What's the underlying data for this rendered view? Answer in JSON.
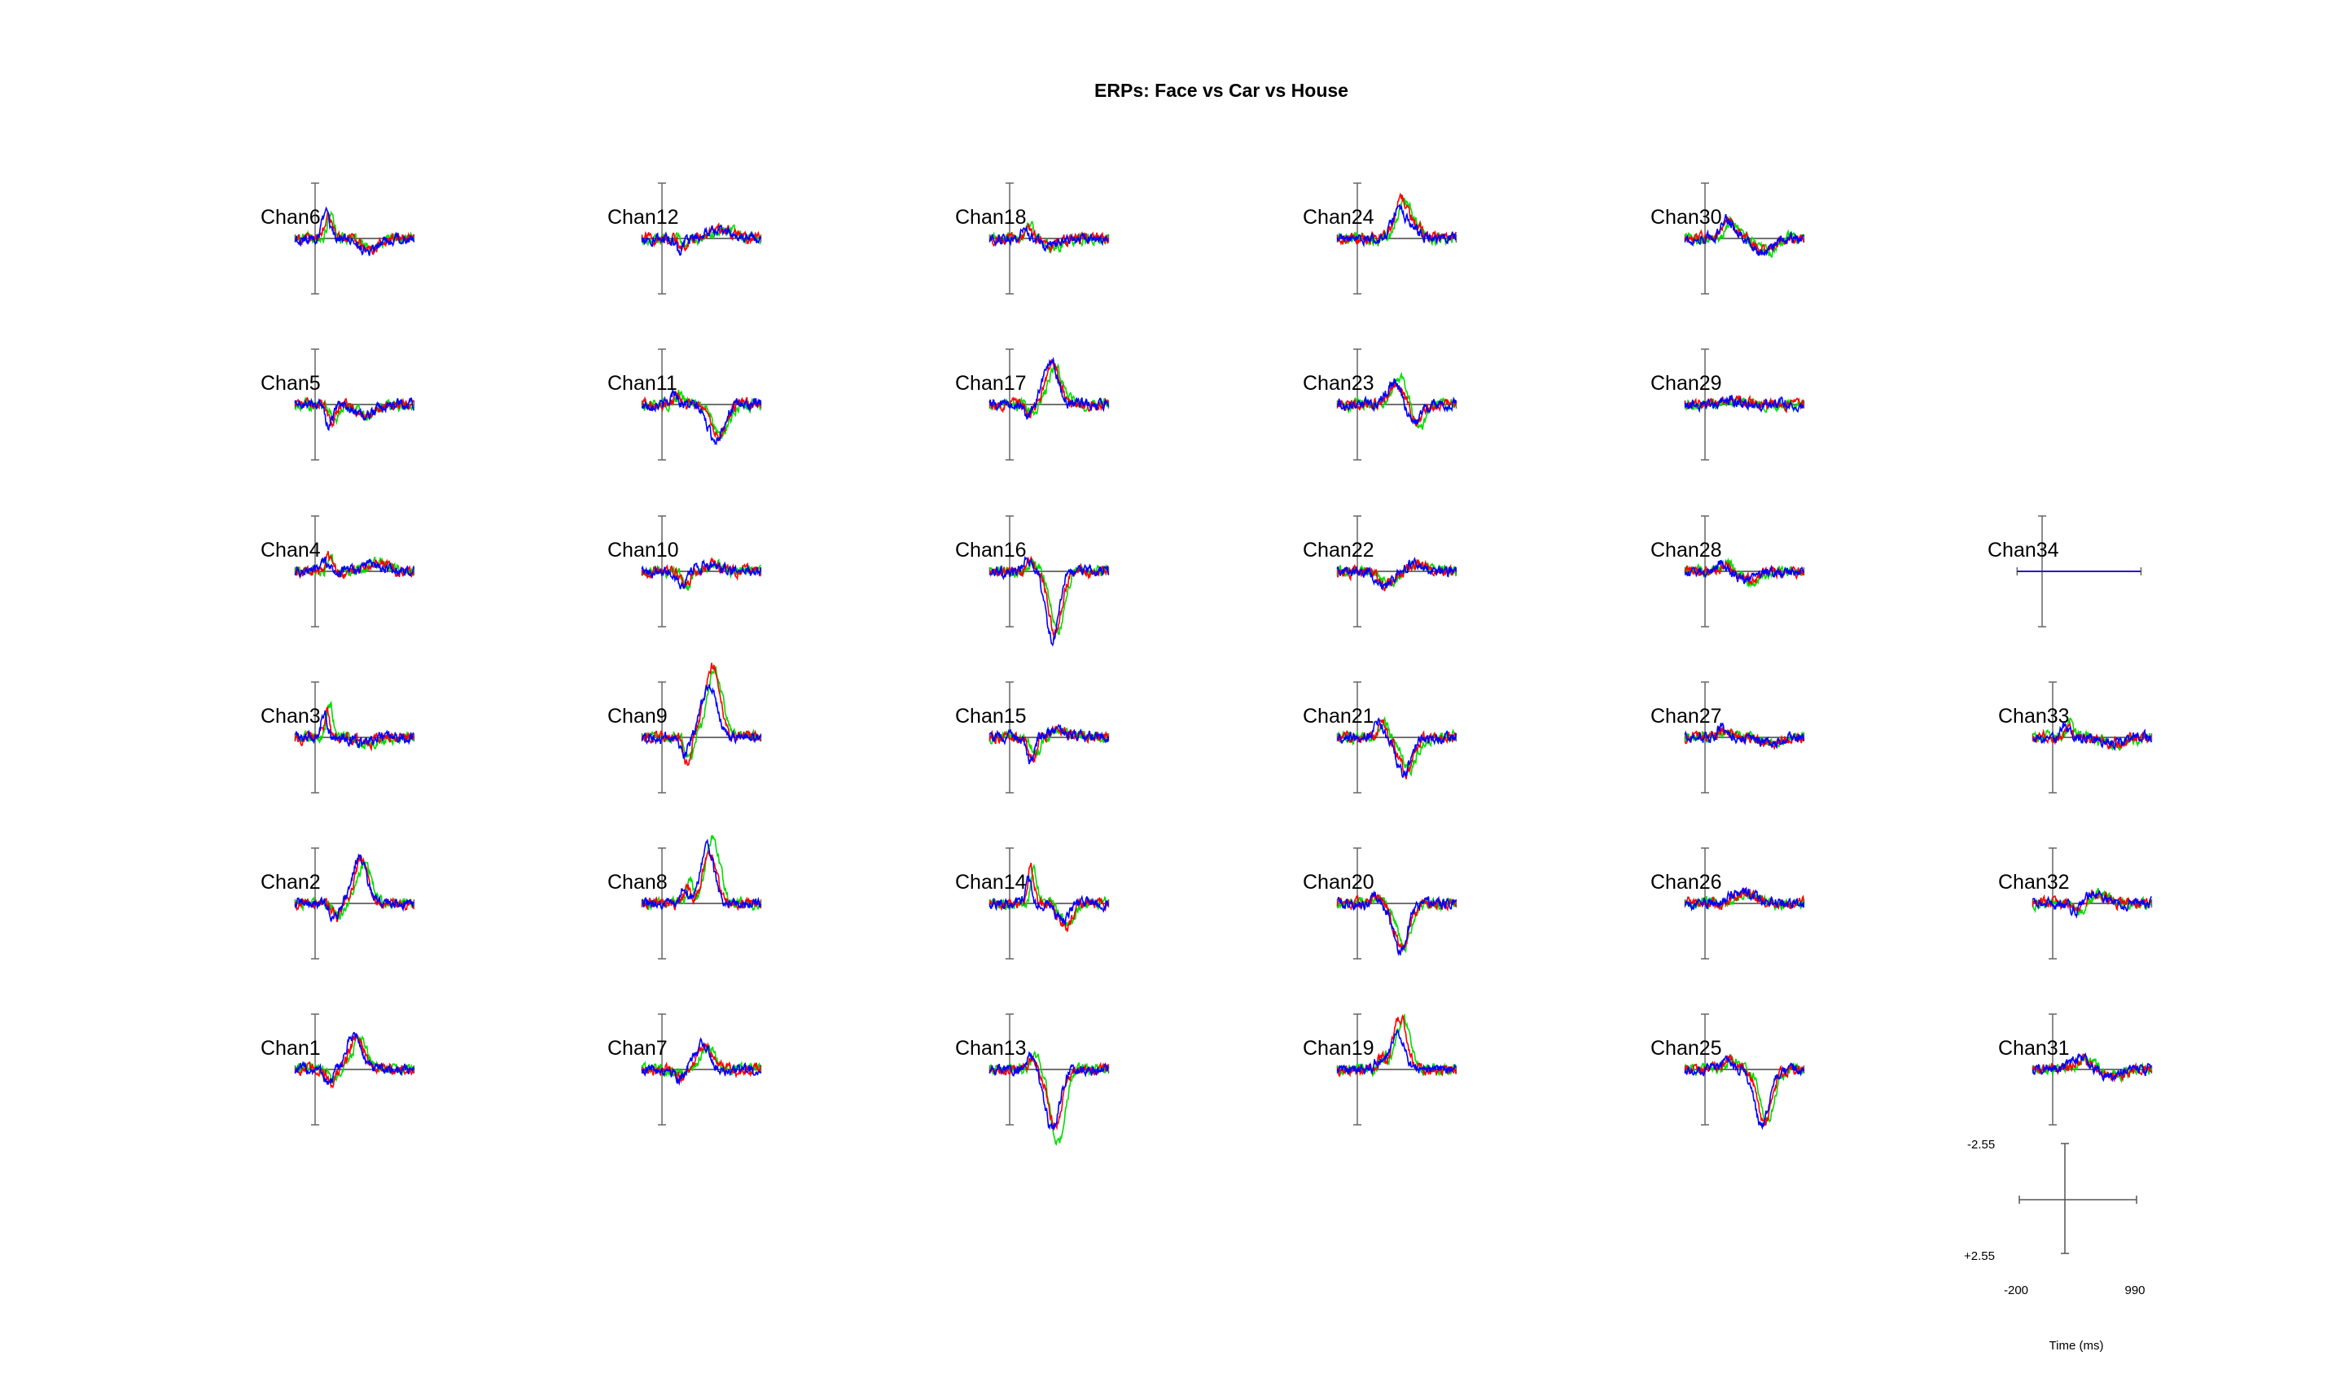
{
  "chart_data": {
    "type": "line",
    "title": "ERPs: Face vs Car vs House",
    "xlabel": "Time (ms)",
    "series_colors": [
      "#0000ff",
      "#ff0000",
      "#00dd00"
    ],
    "scale": {
      "xmin": "-200",
      "xmax": "990",
      "ytop": "-2.55",
      "ybottom": "+2.55",
      "xunit_label": "Time (ms)"
    },
    "xlim": [
      -200,
      990
    ],
    "ylim": [
      -2.55,
      2.55
    ],
    "channels": [
      {
        "name": "Chan1",
        "features": [
          {
            "t": 420,
            "a": 1.5,
            "w": 70
          },
          {
            "t": 170,
            "a": -0.6,
            "w": 40
          }
        ]
      },
      {
        "name": "Chan2",
        "features": [
          {
            "t": 470,
            "a": 2.1,
            "w": 70
          },
          {
            "t": 220,
            "a": -0.7,
            "w": 40
          }
        ]
      },
      {
        "name": "Chan3",
        "features": [
          {
            "t": 120,
            "a": 1.3,
            "w": 30
          },
          {
            "t": 500,
            "a": -0.3,
            "w": 90
          }
        ]
      },
      {
        "name": "Chan4",
        "features": [
          {
            "t": 130,
            "a": 0.6,
            "w": 30
          },
          {
            "t": 600,
            "a": 0.4,
            "w": 100
          }
        ]
      },
      {
        "name": "Chan5",
        "features": [
          {
            "t": 170,
            "a": -0.9,
            "w": 35
          },
          {
            "t": 520,
            "a": -0.5,
            "w": 90
          }
        ]
      },
      {
        "name": "Chan6",
        "features": [
          {
            "t": 130,
            "a": 1.1,
            "w": 35
          },
          {
            "t": 550,
            "a": -0.5,
            "w": 90
          }
        ]
      },
      {
        "name": "Chan7",
        "features": [
          {
            "t": 430,
            "a": 1.2,
            "w": 70
          },
          {
            "t": 200,
            "a": -0.4,
            "w": 40
          }
        ]
      },
      {
        "name": "Chan8",
        "features": [
          {
            "t": 480,
            "a": 2.7,
            "w": 70
          },
          {
            "t": 250,
            "a": 0.9,
            "w": 30
          }
        ]
      },
      {
        "name": "Chan9",
        "features": [
          {
            "t": 500,
            "a": 2.9,
            "w": 75
          },
          {
            "t": 250,
            "a": -1.0,
            "w": 35
          }
        ]
      },
      {
        "name": "Chan10",
        "features": [
          {
            "t": 230,
            "a": -0.7,
            "w": 40
          },
          {
            "t": 500,
            "a": 0.3,
            "w": 80
          }
        ]
      },
      {
        "name": "Chan11",
        "features": [
          {
            "t": 560,
            "a": -1.5,
            "w": 80
          },
          {
            "t": 150,
            "a": 0.6,
            "w": 30
          }
        ]
      },
      {
        "name": "Chan12",
        "features": [
          {
            "t": 200,
            "a": -0.6,
            "w": 35
          },
          {
            "t": 600,
            "a": 0.5,
            "w": 90
          }
        ]
      },
      {
        "name": "Chan13",
        "features": [
          {
            "t": 450,
            "a": -3.0,
            "w": 70
          },
          {
            "t": 230,
            "a": 0.6,
            "w": 40
          }
        ]
      },
      {
        "name": "Chan14",
        "features": [
          {
            "t": 210,
            "a": 1.4,
            "w": 30
          },
          {
            "t": 550,
            "a": -0.9,
            "w": 70
          }
        ]
      },
      {
        "name": "Chan15",
        "features": [
          {
            "t": 230,
            "a": -0.9,
            "w": 35
          },
          {
            "t": 500,
            "a": 0.3,
            "w": 80
          }
        ]
      },
      {
        "name": "Chan16",
        "features": [
          {
            "t": 450,
            "a": -2.9,
            "w": 65
          },
          {
            "t": 200,
            "a": 0.5,
            "w": 40
          }
        ]
      },
      {
        "name": "Chan17",
        "features": [
          {
            "t": 430,
            "a": 2.0,
            "w": 70
          },
          {
            "t": 200,
            "a": -0.5,
            "w": 40
          }
        ]
      },
      {
        "name": "Chan18",
        "features": [
          {
            "t": 170,
            "a": 0.6,
            "w": 35
          },
          {
            "t": 400,
            "a": -0.4,
            "w": 80
          }
        ]
      },
      {
        "name": "Chan19",
        "features": [
          {
            "t": 420,
            "a": 2.1,
            "w": 70
          },
          {
            "t": 230,
            "a": 0.5,
            "w": 35
          }
        ]
      },
      {
        "name": "Chan20",
        "features": [
          {
            "t": 450,
            "a": -2.0,
            "w": 70
          },
          {
            "t": 200,
            "a": 0.3,
            "w": 40
          }
        ]
      },
      {
        "name": "Chan21",
        "features": [
          {
            "t": 500,
            "a": -1.6,
            "w": 70
          },
          {
            "t": 250,
            "a": 0.7,
            "w": 40
          }
        ]
      },
      {
        "name": "Chan22",
        "features": [
          {
            "t": 300,
            "a": -0.7,
            "w": 70
          },
          {
            "t": 600,
            "a": 0.4,
            "w": 80
          }
        ]
      },
      {
        "name": "Chan23",
        "features": [
          {
            "t": 400,
            "a": 1.1,
            "w": 70
          },
          {
            "t": 600,
            "a": -1.0,
            "w": 60
          }
        ]
      },
      {
        "name": "Chan24",
        "features": [
          {
            "t": 450,
            "a": 1.6,
            "w": 70
          },
          {
            "t": 600,
            "a": 0.4,
            "w": 60
          }
        ]
      },
      {
        "name": "Chan25",
        "features": [
          {
            "t": 600,
            "a": -2.3,
            "w": 70
          },
          {
            "t": 250,
            "a": 0.5,
            "w": 50
          }
        ]
      },
      {
        "name": "Chan26",
        "features": [
          {
            "t": 400,
            "a": 0.5,
            "w": 110
          }
        ]
      },
      {
        "name": "Chan27",
        "features": [
          {
            "t": 200,
            "a": 0.4,
            "w": 50
          },
          {
            "t": 650,
            "a": -0.3,
            "w": 100
          }
        ]
      },
      {
        "name": "Chan28",
        "features": [
          {
            "t": 200,
            "a": 0.4,
            "w": 40
          },
          {
            "t": 450,
            "a": -0.5,
            "w": 80
          }
        ]
      },
      {
        "name": "Chan29",
        "features": [
          {
            "t": 300,
            "a": 0.2,
            "w": 80
          }
        ]
      },
      {
        "name": "Chan30",
        "features": [
          {
            "t": 250,
            "a": 0.8,
            "w": 60
          },
          {
            "t": 600,
            "a": -0.6,
            "w": 80
          }
        ]
      },
      {
        "name": "Chan31",
        "features": [
          {
            "t": 300,
            "a": 0.5,
            "w": 80
          },
          {
            "t": 600,
            "a": -0.3,
            "w": 100
          }
        ]
      },
      {
        "name": "Chan32",
        "features": [
          {
            "t": 450,
            "a": 0.5,
            "w": 80
          },
          {
            "t": 250,
            "a": -0.4,
            "w": 40
          }
        ]
      },
      {
        "name": "Chan33",
        "features": [
          {
            "t": 150,
            "a": 0.6,
            "w": 40
          },
          {
            "t": 600,
            "a": -0.3,
            "w": 100
          }
        ]
      },
      {
        "name": "Chan34",
        "features": [],
        "flat": true
      }
    ]
  }
}
